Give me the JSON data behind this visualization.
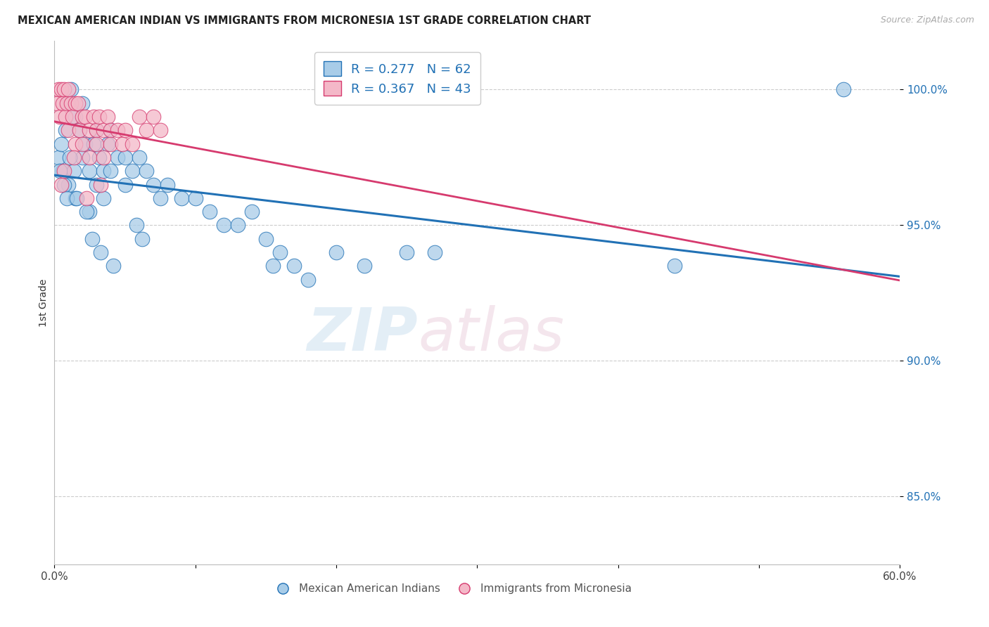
{
  "title": "MEXICAN AMERICAN INDIAN VS IMMIGRANTS FROM MICRONESIA 1ST GRADE CORRELATION CHART",
  "source": "Source: ZipAtlas.com",
  "ylabel": "1st Grade",
  "x_min": 0.0,
  "x_max": 60.0,
  "y_min": 82.5,
  "y_max": 101.8,
  "x_ticks": [
    0.0,
    10.0,
    20.0,
    30.0,
    40.0,
    50.0,
    60.0
  ],
  "x_tick_labels": [
    "0.0%",
    "",
    "",
    "",
    "",
    "",
    "60.0%"
  ],
  "y_ticks": [
    85.0,
    90.0,
    95.0,
    100.0
  ],
  "y_tick_labels": [
    "85.0%",
    "90.0%",
    "95.0%",
    "100.0%"
  ],
  "legend_blue_label": "R = 0.277   N = 62",
  "legend_pink_label": "R = 0.367   N = 43",
  "bottom_legend_blue": "Mexican American Indians",
  "bottom_legend_pink": "Immigrants from Micronesia",
  "blue_color": "#a8cce8",
  "pink_color": "#f4b8c8",
  "blue_line_color": "#2171b5",
  "pink_line_color": "#d63a6e",
  "watermark_zip": "ZIP",
  "watermark_atlas": "atlas",
  "blue_scatter_x": [
    0.3,
    0.5,
    0.6,
    0.8,
    1.0,
    1.0,
    1.2,
    1.4,
    1.5,
    1.5,
    1.8,
    2.0,
    2.0,
    2.2,
    2.5,
    2.5,
    2.8,
    3.0,
    3.0,
    3.2,
    3.5,
    3.5,
    3.8,
    4.0,
    4.0,
    4.5,
    5.0,
    5.0,
    5.5,
    6.0,
    6.5,
    7.0,
    7.5,
    8.0,
    9.0,
    10.0,
    11.0,
    12.0,
    13.0,
    14.0,
    15.0,
    15.5,
    16.0,
    17.0,
    18.0,
    20.0,
    22.0,
    25.0,
    27.0,
    0.4,
    0.7,
    0.9,
    1.1,
    1.6,
    2.3,
    2.7,
    3.3,
    4.2,
    44.0,
    56.0,
    5.8,
    6.2
  ],
  "blue_scatter_y": [
    97.5,
    98.0,
    97.0,
    98.5,
    99.5,
    96.5,
    100.0,
    97.0,
    99.0,
    96.0,
    98.5,
    99.5,
    97.5,
    98.0,
    97.0,
    95.5,
    98.0,
    98.5,
    96.5,
    97.5,
    97.0,
    96.0,
    98.0,
    98.5,
    97.0,
    97.5,
    97.5,
    96.5,
    97.0,
    97.5,
    97.0,
    96.5,
    96.0,
    96.5,
    96.0,
    96.0,
    95.5,
    95.0,
    95.0,
    95.5,
    94.5,
    93.5,
    94.0,
    93.5,
    93.0,
    94.0,
    93.5,
    94.0,
    94.0,
    97.0,
    96.5,
    96.0,
    97.5,
    96.0,
    95.5,
    94.5,
    94.0,
    93.5,
    93.5,
    100.0,
    95.0,
    94.5
  ],
  "pink_scatter_x": [
    0.2,
    0.3,
    0.4,
    0.5,
    0.6,
    0.7,
    0.8,
    0.9,
    1.0,
    1.0,
    1.2,
    1.3,
    1.5,
    1.5,
    1.7,
    1.8,
    2.0,
    2.0,
    2.2,
    2.5,
    2.5,
    2.8,
    3.0,
    3.0,
    3.2,
    3.5,
    3.5,
    3.8,
    4.0,
    4.0,
    4.5,
    4.8,
    5.0,
    5.5,
    6.0,
    6.5,
    7.0,
    7.5,
    0.5,
    0.7,
    1.4,
    2.3,
    3.3
  ],
  "pink_scatter_y": [
    99.5,
    100.0,
    99.0,
    100.0,
    99.5,
    100.0,
    99.0,
    99.5,
    100.0,
    98.5,
    99.5,
    99.0,
    99.5,
    98.0,
    99.5,
    98.5,
    99.0,
    98.0,
    99.0,
    98.5,
    97.5,
    99.0,
    98.5,
    98.0,
    99.0,
    98.5,
    97.5,
    99.0,
    98.5,
    98.0,
    98.5,
    98.0,
    98.5,
    98.0,
    99.0,
    98.5,
    99.0,
    98.5,
    96.5,
    97.0,
    97.5,
    96.0,
    96.5
  ]
}
